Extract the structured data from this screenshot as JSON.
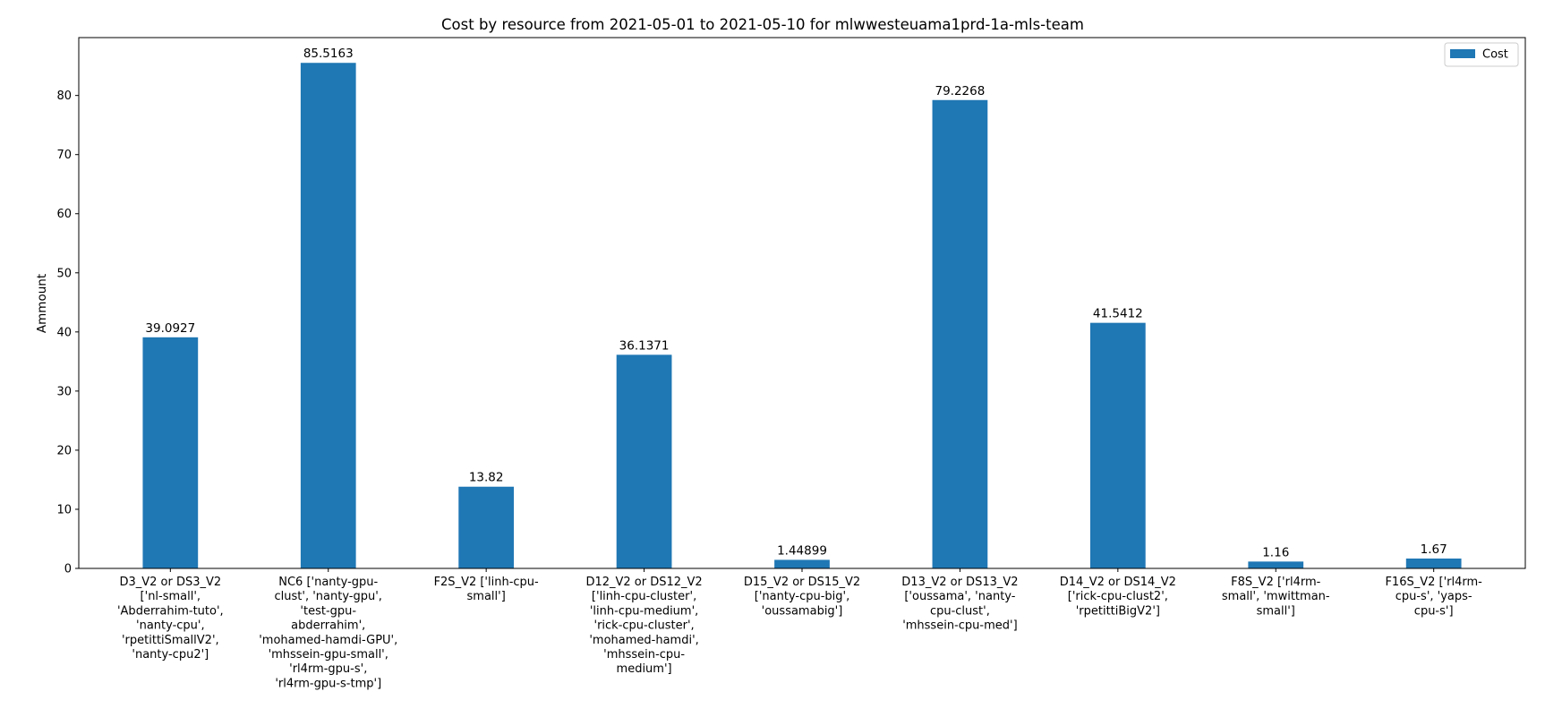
{
  "chart_data": {
    "type": "bar",
    "title": "Cost by resource from 2021-05-01 to 2021-05-10 for mlwwesteuama1prd-1a-mls-team",
    "xlabel": "",
    "ylabel": "Ammount",
    "ylim": [
      0,
      89.79
    ],
    "yticks": [
      "0",
      "10",
      "20",
      "30",
      "40",
      "50",
      "60",
      "70",
      "80"
    ],
    "grid": false,
    "legend_position": "top-right",
    "categories": [
      [
        "D3_V2 or DS3_V2",
        "['nl-small',",
        "'Abderrahim-tuto',",
        "'nanty-cpu',",
        "'rpetittiSmallV2',",
        "'nanty-cpu2']"
      ],
      [
        "NC6 ['nanty-gpu-",
        "clust', 'nanty-gpu',",
        "'test-gpu-",
        "abderrahim',",
        "'mohamed-hamdi-GPU',",
        "'mhssein-gpu-small',",
        "'rl4rm-gpu-s',",
        "'rl4rm-gpu-s-tmp']"
      ],
      [
        "F2S_V2 ['linh-cpu-",
        "small']"
      ],
      [
        "D12_V2 or DS12_V2",
        "['linh-cpu-cluster',",
        "'linh-cpu-medium',",
        "'rick-cpu-cluster',",
        "'mohamed-hamdi',",
        "'mhssein-cpu-",
        "medium']"
      ],
      [
        "D15_V2 or DS15_V2",
        "['nanty-cpu-big',",
        "'oussamabig']"
      ],
      [
        "D13_V2 or DS13_V2",
        "['oussama', 'nanty-",
        "cpu-clust',",
        "'mhssein-cpu-med']"
      ],
      [
        "D14_V2 or DS14_V2",
        "['rick-cpu-clust2',",
        "'rpetittiBigV2']"
      ],
      [
        "F8S_V2 ['rl4rm-",
        "small', 'mwittman-",
        "small']"
      ],
      [
        "F16S_V2 ['rl4rm-",
        "cpu-s', 'yaps-",
        "cpu-s']"
      ]
    ],
    "series": [
      {
        "name": "Cost",
        "color": "#1f77b4",
        "values": [
          39.0927,
          85.5163,
          13.82,
          36.1371,
          1.44899,
          79.2268,
          41.5412,
          1.16,
          1.67
        ],
        "labels": [
          "39.0927",
          "85.5163",
          "13.82",
          "36.1371",
          "1.44899",
          "79.2268",
          "41.5412",
          "1.16",
          "1.67"
        ]
      }
    ]
  }
}
